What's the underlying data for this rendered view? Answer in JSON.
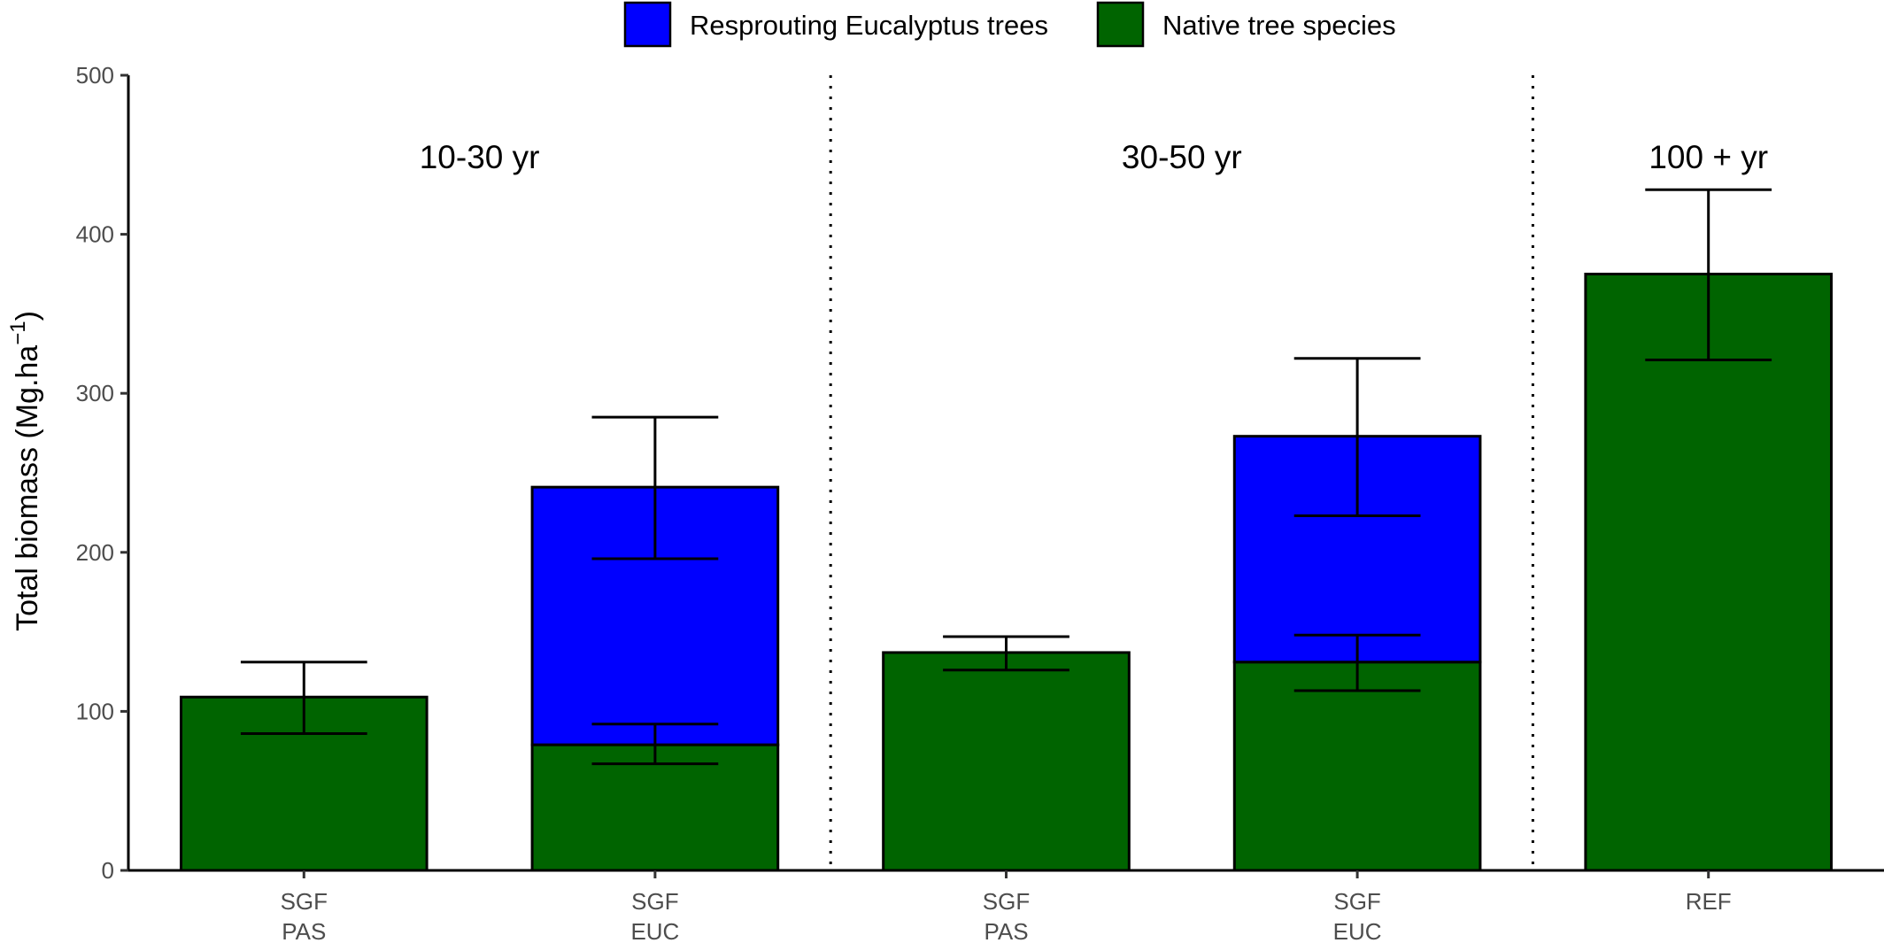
{
  "chart_data": {
    "type": "bar",
    "stacked": true,
    "ylabel": "Total biomass (Mg.ha",
    "ylabel_superscript": "−1",
    "ylabel_close": ")",
    "ylim": [
      0,
      500
    ],
    "yticks": [
      "0",
      "100",
      "200",
      "300",
      "400",
      "500"
    ],
    "categories": [
      {
        "line1": "SGF",
        "line2": "PAS"
      },
      {
        "line1": "SGF",
        "line2": "EUC"
      },
      {
        "line1": "SGF",
        "line2": "PAS"
      },
      {
        "line1": "SGF",
        "line2": "EUC"
      },
      {
        "line1": "REF",
        "line2": ""
      }
    ],
    "series": [
      {
        "name": "Native tree species",
        "color": "#006400",
        "values": [
          109,
          79,
          137,
          131,
          375
        ],
        "error": [
          [
            86,
            131
          ],
          [
            67,
            92
          ],
          [
            126,
            147
          ],
          [
            113,
            148
          ],
          [
            321,
            428
          ]
        ]
      },
      {
        "name": "Resprouting Eucalyptus trees",
        "color": "#0000ff",
        "values": [
          0,
          162,
          0,
          142,
          0
        ],
        "error": [
          null,
          [
            196,
            285
          ],
          null,
          [
            223,
            322
          ],
          null
        ]
      }
    ],
    "legend": {
      "position": "top",
      "entries": [
        {
          "label": "Resprouting Eucalyptus trees",
          "color": "#0000ff"
        },
        {
          "label": "Native tree species",
          "color": "#006400"
        }
      ]
    },
    "groups": [
      {
        "label": "10-30 yr",
        "categories": [
          0,
          1
        ]
      },
      {
        "label": "30-50 yr",
        "categories": [
          2,
          3
        ]
      },
      {
        "label": "100 + yr",
        "categories": [
          4
        ]
      }
    ],
    "dividers_after_category": [
      1,
      3
    ],
    "grid": false
  }
}
